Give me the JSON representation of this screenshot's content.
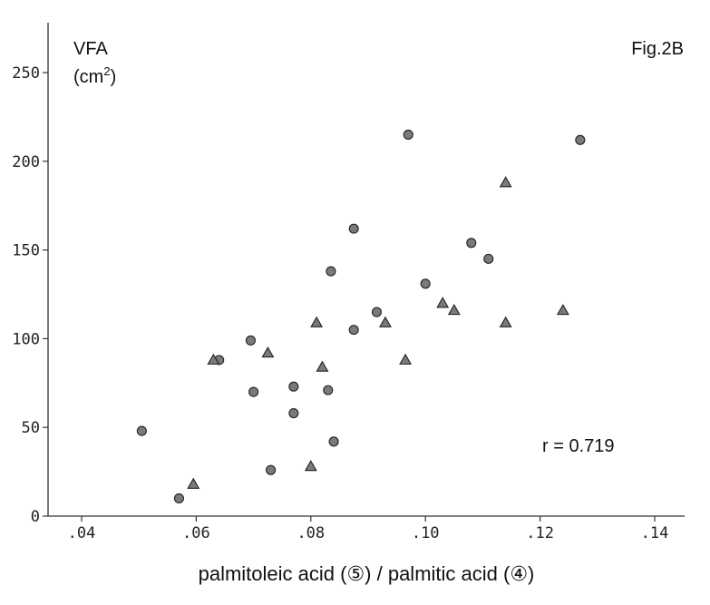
{
  "chart_data": {
    "type": "scatter",
    "title": "",
    "ylabel": "VFA",
    "ylabel_unit_base": "(cm",
    "ylabel_unit_sup": "2",
    "ylabel_unit_end": ")",
    "figure_label": "Fig.2B",
    "xlabel": "palmitoleic acid (⑤) / palmitic acid (④)",
    "annotation": "r = 0.719",
    "xlim": [
      0.035,
      0.143
    ],
    "ylim": [
      0,
      275
    ],
    "xticks": [
      0.04,
      0.06,
      0.08,
      0.1,
      0.12,
      0.14
    ],
    "xtick_labels": [
      ".04",
      ".06",
      ".08",
      ".10",
      ".12",
      ".14"
    ],
    "yticks": [
      0,
      50,
      100,
      150,
      200,
      250
    ],
    "ytick_labels": [
      "0",
      "50",
      "100",
      "150",
      "200",
      "250"
    ],
    "marker_color": "#7a7a7a",
    "marker_edge": "#222222",
    "series": [
      {
        "marker": "circle",
        "points": [
          [
            0.0505,
            48
          ],
          [
            0.057,
            10
          ],
          [
            0.064,
            88
          ],
          [
            0.0695,
            99
          ],
          [
            0.07,
            70
          ],
          [
            0.073,
            26
          ],
          [
            0.077,
            73
          ],
          [
            0.077,
            58
          ],
          [
            0.083,
            71
          ],
          [
            0.0835,
            138
          ],
          [
            0.084,
            42
          ],
          [
            0.0875,
            162
          ],
          [
            0.0875,
            105
          ],
          [
            0.0915,
            115
          ],
          [
            0.097,
            215
          ],
          [
            0.1,
            131
          ],
          [
            0.108,
            154
          ],
          [
            0.111,
            145
          ],
          [
            0.127,
            212
          ]
        ]
      },
      {
        "marker": "triangle",
        "points": [
          [
            0.0595,
            18
          ],
          [
            0.063,
            88
          ],
          [
            0.0725,
            92
          ],
          [
            0.08,
            28
          ],
          [
            0.081,
            109
          ],
          [
            0.082,
            84
          ],
          [
            0.093,
            109
          ],
          [
            0.0965,
            88
          ],
          [
            0.103,
            120
          ],
          [
            0.105,
            116
          ],
          [
            0.114,
            188
          ],
          [
            0.114,
            109
          ],
          [
            0.124,
            116
          ]
        ]
      }
    ]
  }
}
